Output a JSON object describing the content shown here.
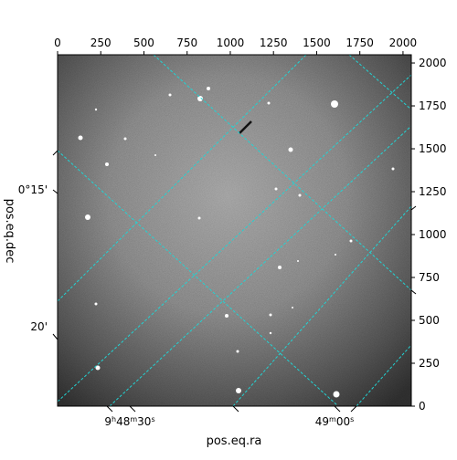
{
  "plot": {
    "xlabel": "pos.eq.ra",
    "ylabel": "pos.eq.dec",
    "ra_ticks": [
      {
        "h": "9",
        "m": "48",
        "s": "30"
      },
      {
        "h": "",
        "m": "49",
        "s": "00"
      }
    ],
    "dec_ticks": [
      "0°15'",
      "20'"
    ],
    "pixel_x_ticks": [
      "0",
      "250",
      "500",
      "750",
      "1000",
      "1250",
      "1500",
      "1750",
      "2000"
    ],
    "pixel_y_ticks": [
      "0",
      "250",
      "500",
      "750",
      "1000",
      "1250",
      "1500",
      "1750",
      "2000"
    ],
    "grid_color": "#22d3d3",
    "image_colormap": "grayscale"
  }
}
